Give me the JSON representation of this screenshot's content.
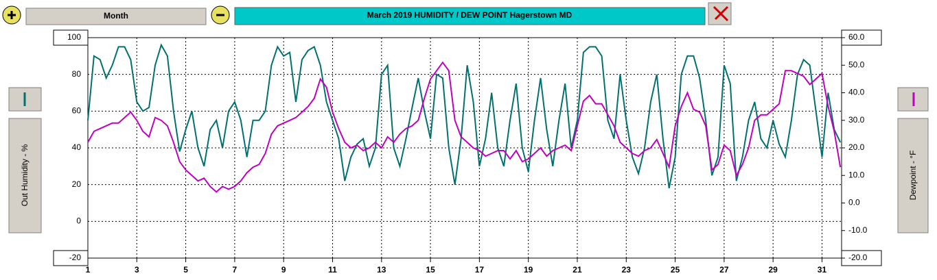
{
  "toolbar": {
    "period": "Month"
  },
  "chart_data": {
    "type": "line",
    "title": "March   2019     HUMIDITY / DEW POINT  Hagerstown MD",
    "y_label": "Out Humidity - %",
    "y2_label": "Dewpoint - °F",
    "x": [
      1,
      1.25,
      1.5,
      1.75,
      2,
      2.25,
      2.5,
      2.75,
      3,
      3.25,
      3.5,
      3.75,
      4,
      4.25,
      4.5,
      4.75,
      5,
      5.25,
      5.5,
      5.75,
      6,
      6.25,
      6.5,
      6.75,
      7,
      7.25,
      7.5,
      7.75,
      8,
      8.25,
      8.5,
      8.75,
      9,
      9.25,
      9.5,
      9.75,
      10,
      10.25,
      10.5,
      10.75,
      11,
      11.25,
      11.5,
      11.75,
      12,
      12.25,
      12.5,
      12.75,
      13,
      13.25,
      13.5,
      13.75,
      14,
      14.25,
      14.5,
      14.75,
      15,
      15.25,
      15.5,
      15.75,
      16,
      16.25,
      16.5,
      16.75,
      17,
      17.25,
      17.5,
      17.75,
      18,
      18.25,
      18.5,
      18.75,
      19,
      19.25,
      19.5,
      19.75,
      20,
      20.25,
      20.5,
      20.75,
      21,
      21.25,
      21.5,
      21.75,
      22,
      22.25,
      22.5,
      22.75,
      23,
      23.25,
      23.5,
      23.75,
      24,
      24.25,
      24.5,
      24.75,
      25,
      25.25,
      25.5,
      25.75,
      26,
      26.25,
      26.5,
      26.75,
      27,
      27.25,
      27.5,
      27.75,
      28,
      28.25,
      28.5,
      28.75,
      29,
      29.25,
      29.5,
      29.75,
      30,
      30.25,
      30.5,
      30.75,
      31,
      31.25,
      31.5,
      31.75
    ],
    "series": [
      {
        "color": "#007070",
        "values": [
          55,
          90,
          88,
          78,
          85,
          95,
          95,
          88,
          65,
          60,
          62,
          85,
          96,
          90,
          60,
          38,
          50,
          60,
          40,
          30,
          50,
          55,
          40,
          60,
          65,
          55,
          35,
          55,
          55,
          60,
          85,
          95,
          90,
          92,
          65,
          88,
          93,
          95,
          85,
          65,
          55,
          45,
          22,
          35,
          42,
          45,
          30,
          40,
          80,
          85,
          40,
          30,
          45,
          62,
          78,
          60,
          45,
          80,
          78,
          40,
          20,
          45,
          85,
          65,
          30,
          45,
          70,
          40,
          30,
          55,
          75,
          40,
          27,
          55,
          78,
          50,
          30,
          55,
          75,
          40,
          55,
          92,
          95,
          95,
          90,
          55,
          45,
          80,
          55,
          35,
          26,
          40,
          65,
          80,
          45,
          18,
          35,
          80,
          90,
          90,
          78,
          55,
          25,
          35,
          85,
          75,
          22,
          35,
          55,
          65,
          45,
          40,
          55,
          42,
          35,
          55,
          80,
          88,
          85,
          60,
          35,
          70,
          50,
          43
        ]
      },
      {
        "color": "#c000c0",
        "axis": "y2",
        "values": [
          22,
          26,
          27,
          28,
          29,
          29,
          31,
          33,
          30,
          26,
          24,
          31,
          30,
          28,
          22,
          15,
          12,
          10,
          8,
          9,
          6,
          4,
          6,
          5,
          6,
          8,
          11,
          13,
          14,
          18,
          25,
          28,
          29,
          30,
          31,
          33,
          35,
          38,
          45,
          42,
          33,
          27,
          22,
          20,
          21,
          19,
          20,
          22,
          20,
          24,
          22,
          25,
          27,
          28,
          30,
          38,
          45,
          48,
          51,
          48,
          30,
          24,
          22,
          20,
          19,
          17,
          18,
          19,
          19,
          16,
          19,
          15,
          16,
          18,
          20,
          17,
          19,
          20,
          21,
          19,
          28,
          37,
          39,
          36,
          36,
          32,
          28,
          22,
          20,
          18,
          17,
          19,
          20,
          23,
          18,
          13,
          28,
          35,
          40,
          34,
          33,
          28,
          12,
          14,
          21,
          19,
          10,
          14,
          20,
          30,
          32,
          32,
          34,
          36,
          48,
          48,
          47,
          46,
          43,
          45,
          47,
          35,
          26,
          13
        ]
      }
    ],
    "xlim": [
      1,
      31.8
    ],
    "xticks": [
      1,
      3,
      5,
      7,
      9,
      11,
      13,
      15,
      17,
      19,
      21,
      23,
      25,
      27,
      29,
      31
    ],
    "ylim": [
      -20,
      100
    ],
    "yticks": [
      -20,
      0,
      20,
      40,
      60,
      80,
      100
    ],
    "y2lim": [
      -20,
      60
    ],
    "y2ticks": [
      {
        "value": -20,
        "label": "-20.0"
      },
      {
        "value": -10,
        "label": "-10.0"
      },
      {
        "value": 0,
        "label": "0.0"
      },
      {
        "value": 10,
        "label": "10.0"
      },
      {
        "value": 20,
        "label": "20.0"
      },
      {
        "value": 30,
        "label": "30.0"
      },
      {
        "value": 40,
        "label": "40.0"
      },
      {
        "value": 50,
        "label": "50.0"
      },
      {
        "value": 60,
        "label": "60.0"
      }
    ],
    "grid": true
  }
}
